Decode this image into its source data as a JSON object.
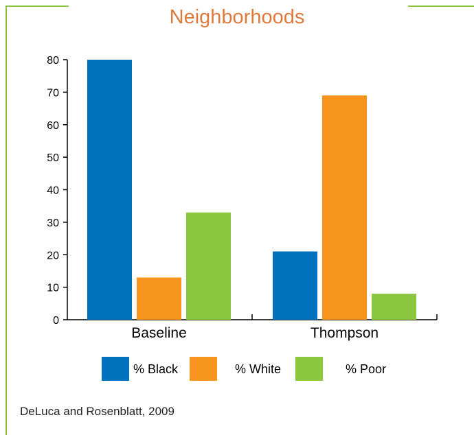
{
  "chart_data": {
    "type": "bar",
    "title": "Neighborhoods",
    "categories": [
      "Baseline",
      "Thompson"
    ],
    "series": [
      {
        "name": "% Black",
        "values": [
          80,
          21
        ],
        "color": "#0071bc"
      },
      {
        "name": "% White",
        "values": [
          13,
          69
        ],
        "color": "#f7941d"
      },
      {
        "name": "% Poor",
        "values": [
          33,
          8
        ],
        "color": "#8cc63f"
      }
    ],
    "ylim": [
      0,
      80
    ],
    "yticks": [
      "0",
      "10",
      "20",
      "30",
      "40",
      "50",
      "60",
      "70",
      "80"
    ],
    "xlabel": "",
    "ylabel": "",
    "grid": false,
    "legend_placement": "bottom"
  },
  "source": "DeLuca and Rosenblatt, 2009",
  "colors": {
    "frame": "#8cc63f",
    "title": "#e07a3c"
  }
}
